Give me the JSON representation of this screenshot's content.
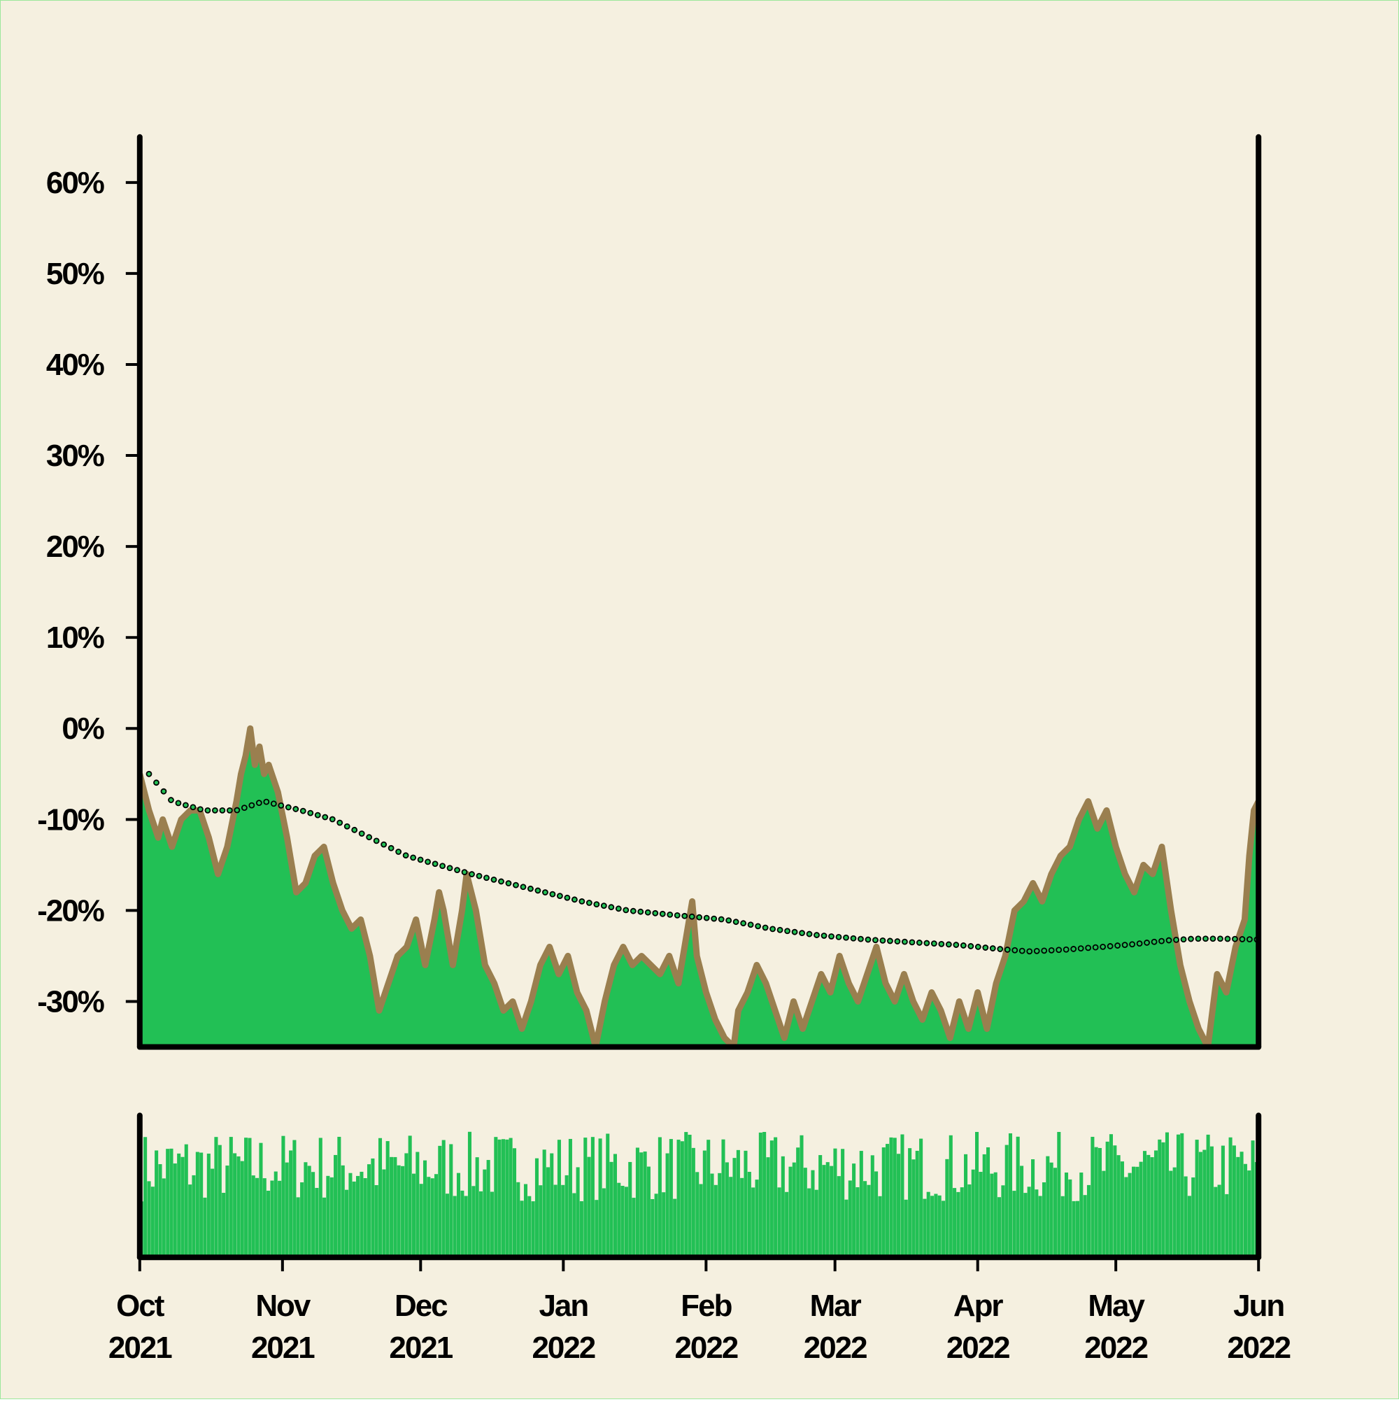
{
  "colors": {
    "background": "#f5f0e0",
    "area_fill": "#22c055",
    "area_edge": "#9a7f4f",
    "trend_marker_fill": "#22c055",
    "trend_marker_edge": "#000000",
    "volume": "#22c055",
    "axis": "#000000"
  },
  "chart_data": {
    "type": "area",
    "title": "",
    "xlabel": "",
    "ylabel": "",
    "x_range": [
      "2021-10-01",
      "2022-06-01"
    ],
    "ylim": [
      -35,
      65
    ],
    "yticks": [
      {
        "value": 60,
        "label": "60%"
      },
      {
        "value": 50,
        "label": "50%"
      },
      {
        "value": 40,
        "label": "40%"
      },
      {
        "value": 30,
        "label": "30%"
      },
      {
        "value": 20,
        "label": "20%"
      },
      {
        "value": 10,
        "label": "10%"
      },
      {
        "value": 0,
        "label": "0%"
      },
      {
        "value": -10,
        "label": "-10%"
      },
      {
        "value": -20,
        "label": "-20%"
      },
      {
        "value": -30,
        "label": "-30%"
      }
    ],
    "xticks": [
      {
        "date": "2021-10-01",
        "line1": "Oct",
        "line2": "2021"
      },
      {
        "date": "2021-11-01",
        "line1": "Nov",
        "line2": "2021"
      },
      {
        "date": "2021-12-01",
        "line1": "Dec",
        "line2": "2021"
      },
      {
        "date": "2022-01-01",
        "line1": "Jan",
        "line2": "2022"
      },
      {
        "date": "2022-02-01",
        "line1": "Feb",
        "line2": "2022"
      },
      {
        "date": "2022-03-01",
        "line1": "Mar",
        "line2": "2022"
      },
      {
        "date": "2022-04-01",
        "line1": "Apr",
        "line2": "2022"
      },
      {
        "date": "2022-05-01",
        "line1": "May",
        "line2": "2022"
      },
      {
        "date": "2022-06-01",
        "line1": "Jun",
        "line2": "2022"
      }
    ],
    "series": [
      {
        "kind": "area",
        "points": [
          [
            "2021-10-01",
            -5
          ],
          [
            "2021-10-03",
            -9
          ],
          [
            "2021-10-05",
            -12
          ],
          [
            "2021-10-06",
            -10
          ],
          [
            "2021-10-08",
            -13
          ],
          [
            "2021-10-10",
            -10
          ],
          [
            "2021-10-12",
            -9
          ],
          [
            "2021-10-14",
            -9
          ],
          [
            "2021-10-16",
            -12
          ],
          [
            "2021-10-18",
            -16
          ],
          [
            "2021-10-20",
            -13
          ],
          [
            "2021-10-22",
            -8
          ],
          [
            "2021-10-23",
            -5
          ],
          [
            "2021-10-24",
            -3
          ],
          [
            "2021-10-25",
            0
          ],
          [
            "2021-10-26",
            -4
          ],
          [
            "2021-10-27",
            -2
          ],
          [
            "2021-10-28",
            -5
          ],
          [
            "2021-10-29",
            -4
          ],
          [
            "2021-10-31",
            -7
          ],
          [
            "2021-11-02",
            -12
          ],
          [
            "2021-11-04",
            -18
          ],
          [
            "2021-11-06",
            -17
          ],
          [
            "2021-11-08",
            -14
          ],
          [
            "2021-11-10",
            -13
          ],
          [
            "2021-11-12",
            -17
          ],
          [
            "2021-11-14",
            -20
          ],
          [
            "2021-11-16",
            -22
          ],
          [
            "2021-11-18",
            -21
          ],
          [
            "2021-11-20",
            -25
          ],
          [
            "2021-11-22",
            -31
          ],
          [
            "2021-11-24",
            -28
          ],
          [
            "2021-11-26",
            -25
          ],
          [
            "2021-11-28",
            -24
          ],
          [
            "2021-11-30",
            -21
          ],
          [
            "2021-12-02",
            -26
          ],
          [
            "2021-12-04",
            -21
          ],
          [
            "2021-12-05",
            -18
          ],
          [
            "2021-12-06",
            -20
          ],
          [
            "2021-12-08",
            -26
          ],
          [
            "2021-12-10",
            -20
          ],
          [
            "2021-12-11",
            -16
          ],
          [
            "2021-12-13",
            -20
          ],
          [
            "2021-12-15",
            -26
          ],
          [
            "2021-12-17",
            -28
          ],
          [
            "2021-12-19",
            -31
          ],
          [
            "2021-12-21",
            -30
          ],
          [
            "2021-12-23",
            -33
          ],
          [
            "2021-12-25",
            -30
          ],
          [
            "2021-12-27",
            -26
          ],
          [
            "2021-12-29",
            -24
          ],
          [
            "2021-12-31",
            -27
          ],
          [
            "2022-01-02",
            -25
          ],
          [
            "2022-01-04",
            -29
          ],
          [
            "2022-01-06",
            -31
          ],
          [
            "2022-01-08",
            -35
          ],
          [
            "2022-01-10",
            -30
          ],
          [
            "2022-01-12",
            -26
          ],
          [
            "2022-01-14",
            -24
          ],
          [
            "2022-01-16",
            -26
          ],
          [
            "2022-01-18",
            -25
          ],
          [
            "2022-01-20",
            -26
          ],
          [
            "2022-01-22",
            -27
          ],
          [
            "2022-01-24",
            -25
          ],
          [
            "2022-01-26",
            -28
          ],
          [
            "2022-01-28",
            -22
          ],
          [
            "2022-01-29",
            -19
          ],
          [
            "2022-01-30",
            -25
          ],
          [
            "2022-02-01",
            -29
          ],
          [
            "2022-02-03",
            -32
          ],
          [
            "2022-02-05",
            -34
          ],
          [
            "2022-02-07",
            -35
          ],
          [
            "2022-02-08",
            -31
          ],
          [
            "2022-02-10",
            -29
          ],
          [
            "2022-02-12",
            -26
          ],
          [
            "2022-02-14",
            -28
          ],
          [
            "2022-02-16",
            -31
          ],
          [
            "2022-02-18",
            -34
          ],
          [
            "2022-02-20",
            -30
          ],
          [
            "2022-02-22",
            -33
          ],
          [
            "2022-02-24",
            -30
          ],
          [
            "2022-02-26",
            -27
          ],
          [
            "2022-02-28",
            -29
          ],
          [
            "2022-03-02",
            -25
          ],
          [
            "2022-03-04",
            -28
          ],
          [
            "2022-03-06",
            -30
          ],
          [
            "2022-03-08",
            -27
          ],
          [
            "2022-03-10",
            -24
          ],
          [
            "2022-03-12",
            -28
          ],
          [
            "2022-03-14",
            -30
          ],
          [
            "2022-03-16",
            -27
          ],
          [
            "2022-03-18",
            -30
          ],
          [
            "2022-03-20",
            -32
          ],
          [
            "2022-03-22",
            -29
          ],
          [
            "2022-03-24",
            -31
          ],
          [
            "2022-03-26",
            -34
          ],
          [
            "2022-03-28",
            -30
          ],
          [
            "2022-03-30",
            -33
          ],
          [
            "2022-04-01",
            -29
          ],
          [
            "2022-04-03",
            -33
          ],
          [
            "2022-04-05",
            -28
          ],
          [
            "2022-04-07",
            -25
          ],
          [
            "2022-04-09",
            -20
          ],
          [
            "2022-04-11",
            -19
          ],
          [
            "2022-04-13",
            -17
          ],
          [
            "2022-04-15",
            -19
          ],
          [
            "2022-04-17",
            -16
          ],
          [
            "2022-04-19",
            -14
          ],
          [
            "2022-04-21",
            -13
          ],
          [
            "2022-04-23",
            -10
          ],
          [
            "2022-04-25",
            -8
          ],
          [
            "2022-04-27",
            -11
          ],
          [
            "2022-04-29",
            -9
          ],
          [
            "2022-05-01",
            -13
          ],
          [
            "2022-05-03",
            -16
          ],
          [
            "2022-05-05",
            -18
          ],
          [
            "2022-05-07",
            -15
          ],
          [
            "2022-05-09",
            -16
          ],
          [
            "2022-05-11",
            -13
          ],
          [
            "2022-05-13",
            -20
          ],
          [
            "2022-05-15",
            -26
          ],
          [
            "2022-05-17",
            -30
          ],
          [
            "2022-05-19",
            -33
          ],
          [
            "2022-05-21",
            -35
          ],
          [
            "2022-05-23",
            -27
          ],
          [
            "2022-05-25",
            -29
          ],
          [
            "2022-05-27",
            -24
          ],
          [
            "2022-05-29",
            -21
          ],
          [
            "2022-05-30",
            -14
          ],
          [
            "2022-05-31",
            -9
          ],
          [
            "2022-06-01",
            -8
          ]
        ]
      },
      {
        "kind": "trend",
        "points": [
          [
            "2021-10-03",
            -5
          ],
          [
            "2021-10-08",
            -8
          ],
          [
            "2021-10-15",
            -9
          ],
          [
            "2021-10-22",
            -9
          ],
          [
            "2021-10-28",
            -8
          ],
          [
            "2021-11-05",
            -9
          ],
          [
            "2021-11-12",
            -10
          ],
          [
            "2021-11-20",
            -12
          ],
          [
            "2021-11-28",
            -14
          ],
          [
            "2021-12-05",
            -15
          ],
          [
            "2021-12-12",
            -16
          ],
          [
            "2021-12-20",
            -17
          ],
          [
            "2021-12-28",
            -18
          ],
          [
            "2022-01-05",
            -19
          ],
          [
            "2022-01-15",
            -20
          ],
          [
            "2022-01-25",
            -20.5
          ],
          [
            "2022-02-05",
            -21
          ],
          [
            "2022-02-15",
            -22
          ],
          [
            "2022-02-25",
            -22.7
          ],
          [
            "2022-03-08",
            -23.2
          ],
          [
            "2022-03-18",
            -23.5
          ],
          [
            "2022-03-28",
            -23.8
          ],
          [
            "2022-04-05",
            -24.2
          ],
          [
            "2022-04-12",
            -24.5
          ],
          [
            "2022-04-20",
            -24.3
          ],
          [
            "2022-04-28",
            -24
          ],
          [
            "2022-05-05",
            -23.7
          ],
          [
            "2022-05-12",
            -23.3
          ],
          [
            "2022-05-18",
            -23.1
          ],
          [
            "2022-05-24",
            -23.1
          ],
          [
            "2022-06-01",
            -23.2
          ]
        ]
      }
    ]
  }
}
